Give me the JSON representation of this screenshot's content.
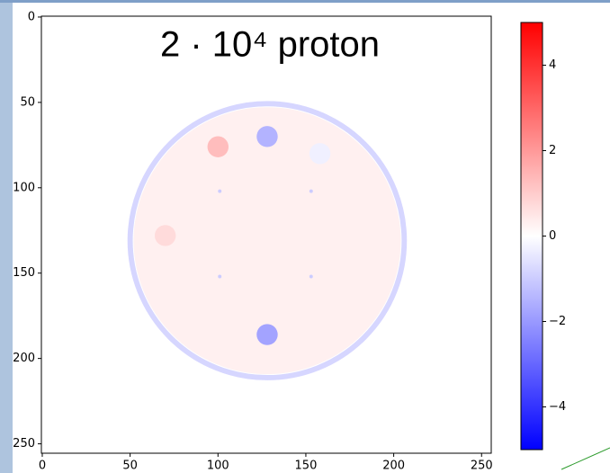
{
  "chart_data": {
    "type": "image",
    "title": "2 · 10⁴ proton",
    "xlim": [
      -0.5,
      255.5
    ],
    "xticks": [
      0,
      50,
      100,
      150,
      200,
      250
    ],
    "ylim": [
      255.5,
      -0.5
    ],
    "yticks": [
      0,
      50,
      100,
      150,
      200,
      250
    ],
    "clim": [
      -5,
      5
    ],
    "cticks": [
      {
        "value": -4,
        "label": "−4"
      },
      {
        "value": -2,
        "label": "−2"
      },
      0,
      2,
      4
    ],
    "cmap_colors": [
      "#0000ff",
      "#ffffff",
      "#ff0000"
    ],
    "ring": {
      "x": 128,
      "y": 131,
      "r": 78,
      "width": 3,
      "value": -0.8
    },
    "features": [
      {
        "x": 128,
        "y": 131,
        "r": 76,
        "value": 0.3
      },
      {
        "x": 128,
        "y": 70,
        "r": 6,
        "value": -1.5
      },
      {
        "x": 100,
        "y": 76,
        "r": 6,
        "value": 1.3
      },
      {
        "x": 70,
        "y": 128,
        "r": 6,
        "value": 0.7
      },
      {
        "x": 158,
        "y": 80,
        "r": 6,
        "value": -0.3
      },
      {
        "x": 128,
        "y": 186,
        "r": 6,
        "value": -1.8
      },
      {
        "x": 101,
        "y": 102,
        "r": 1,
        "value": -1
      },
      {
        "x": 153,
        "y": 102,
        "r": 1,
        "value": -1
      },
      {
        "x": 101,
        "y": 152,
        "r": 1,
        "value": -1
      },
      {
        "x": 153,
        "y": 152,
        "r": 1,
        "value": -1
      }
    ]
  }
}
